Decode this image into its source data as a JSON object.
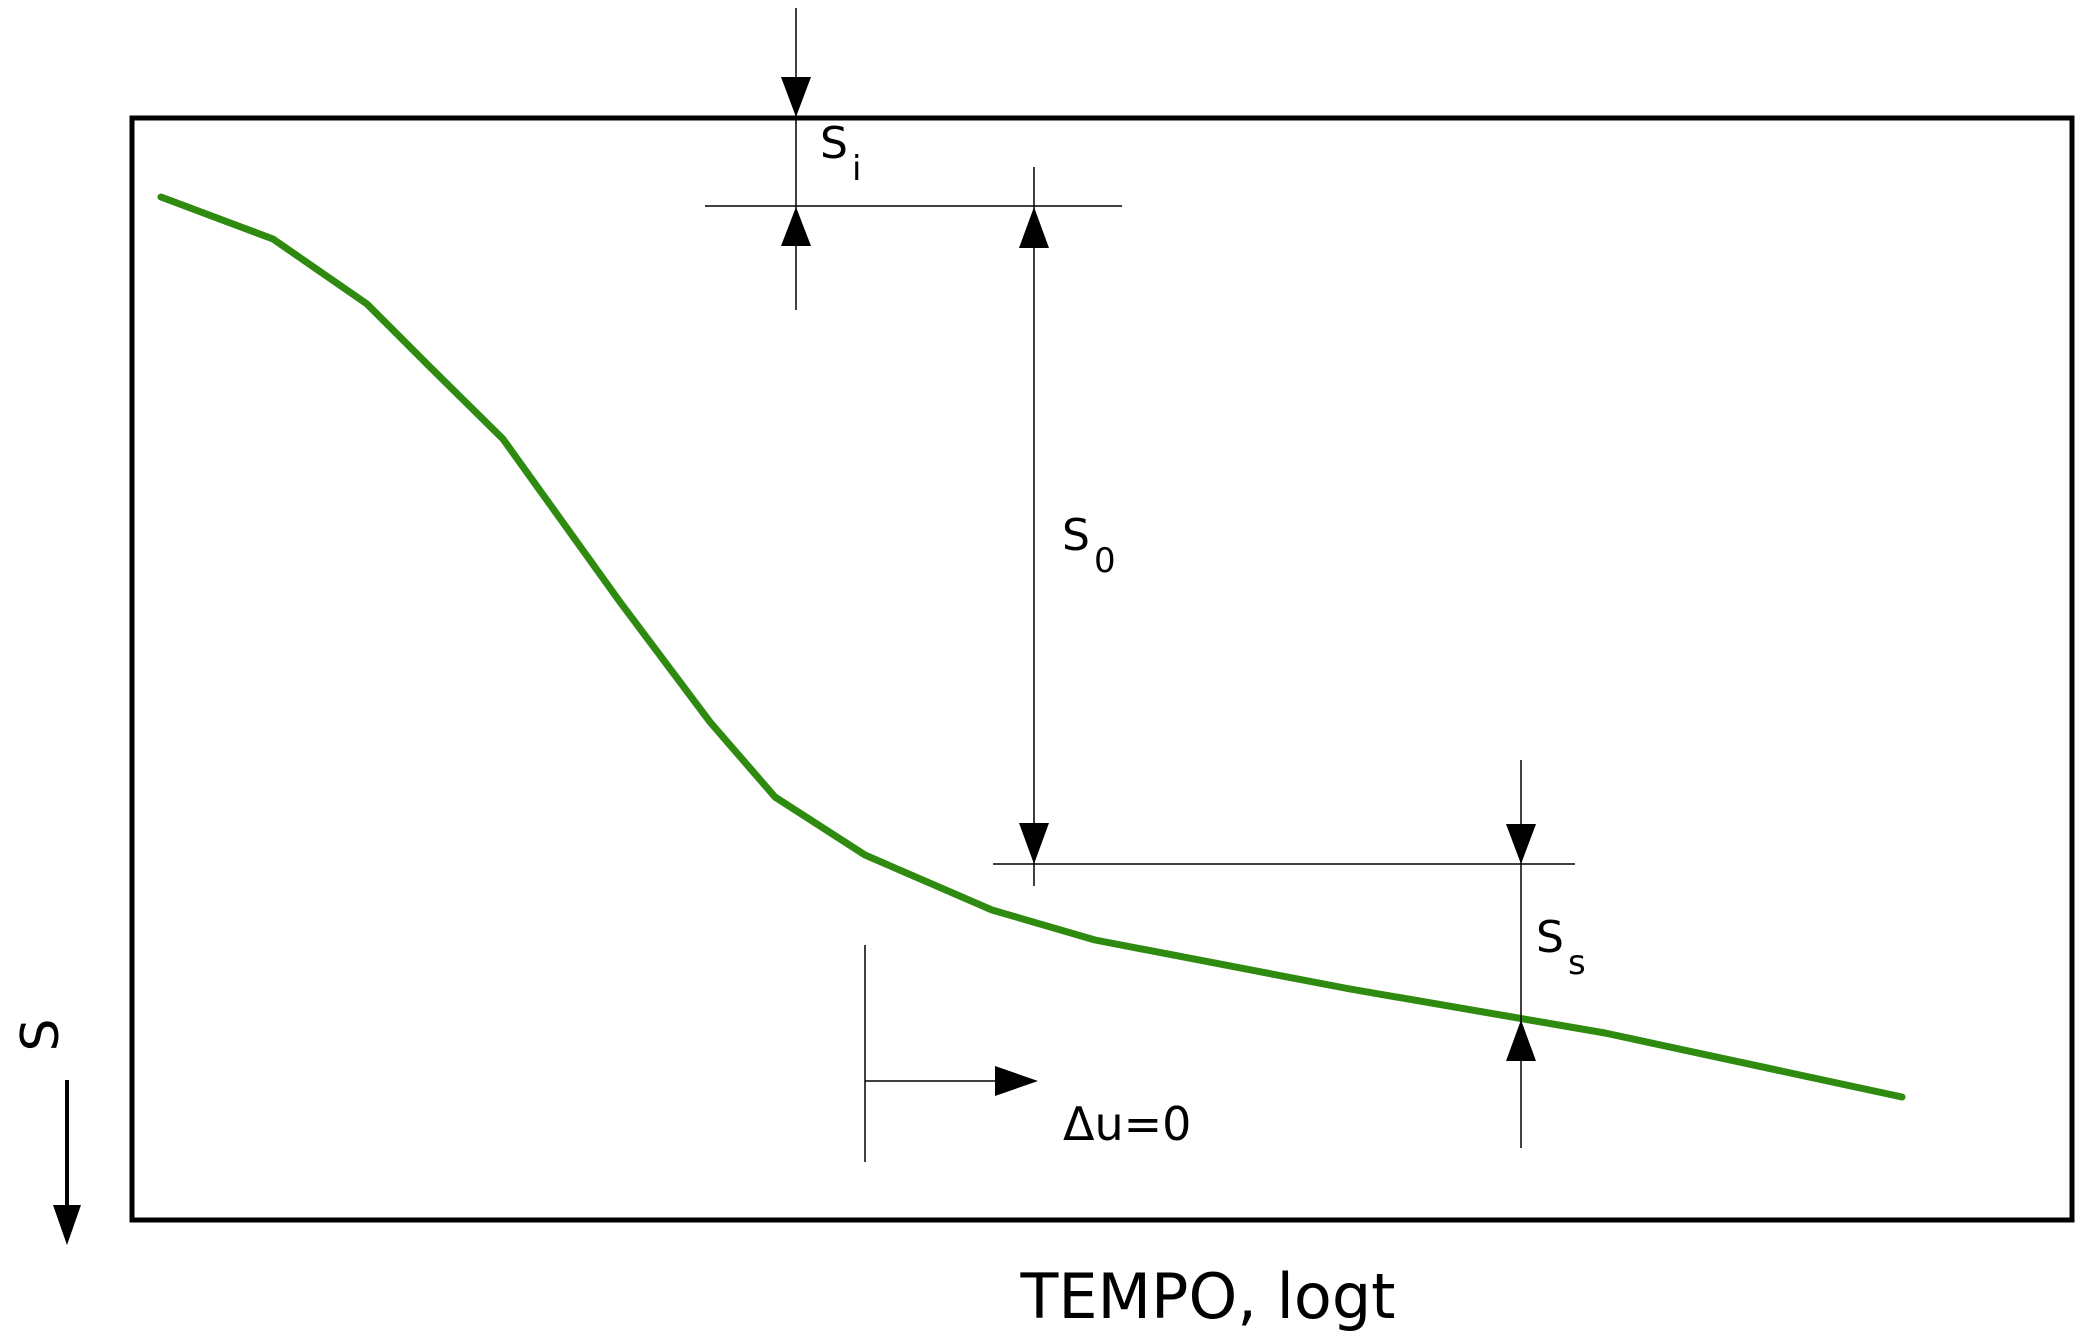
{
  "diagram": {
    "x_axis_label": "TEMPO, logt",
    "y_axis_label": "S",
    "labels": {
      "si": {
        "main": "S",
        "sub": "i"
      },
      "s0": {
        "main": "S",
        "sub": "0"
      },
      "ss": {
        "main": "S",
        "sub": "s"
      },
      "du": "Δu=0"
    },
    "colors": {
      "curve": "#2e8b10",
      "frame": "#000000",
      "dimension_lines": "#000000"
    }
  }
}
